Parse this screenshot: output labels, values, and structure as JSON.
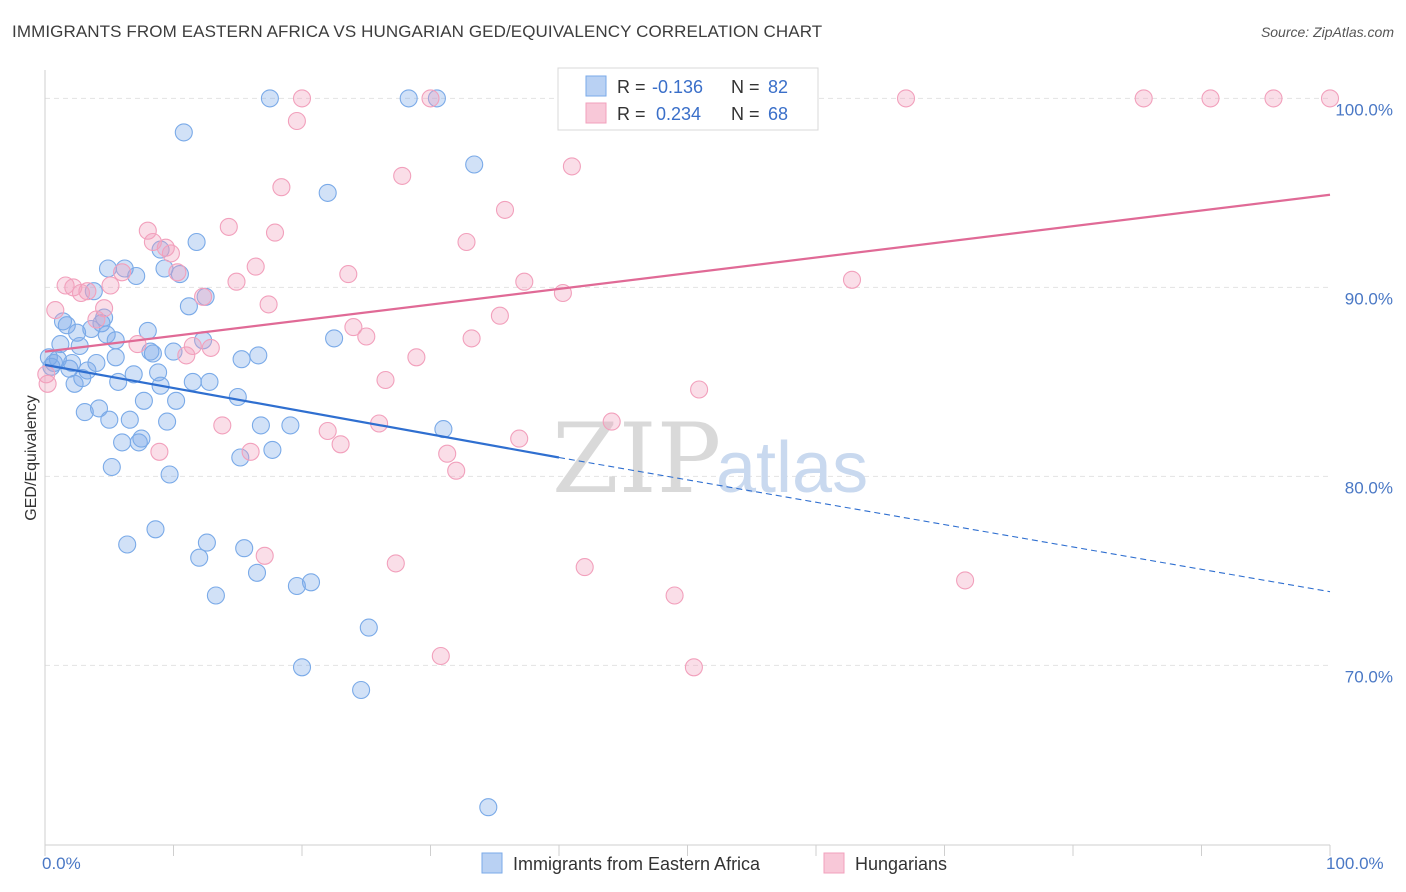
{
  "header": {
    "title": "IMMIGRANTS FROM EASTERN AFRICA VS HUNGARIAN GED/EQUIVALENCY CORRELATION CHART",
    "source": "Source: ZipAtlas.com"
  },
  "watermark": {
    "zip": "ZIP",
    "atlas": "atlas"
  },
  "legend_top": {
    "r_label": "R =",
    "n_label": "N =",
    "rows": [
      {
        "r": "-0.136",
        "n": "82",
        "color": "#7aaae8"
      },
      {
        "r": "0.234",
        "n": "68",
        "color": "#f2a0bc"
      }
    ]
  },
  "chart_data": {
    "type": "scatter",
    "title": "IMMIGRANTS FROM EASTERN AFRICA VS HUNGARIAN GED/EQUIVALENCY CORRELATION CHART",
    "ylabel": "GED/Equivalency",
    "xlim": [
      0,
      100
    ],
    "ylim": [
      60.5,
      101.5
    ],
    "x_tick_labels": [
      "0.0%",
      "100.0%"
    ],
    "y_ticks": [
      {
        "value": 70,
        "label": "70.0%"
      },
      {
        "value": 80,
        "label": "80.0%"
      },
      {
        "value": 90,
        "label": "90.0%"
      },
      {
        "value": 100,
        "label": "100.0%"
      }
    ],
    "grid": true,
    "legend_placement": "bottom",
    "series": [
      {
        "name": "Immigrants from Eastern Africa",
        "color": "#7aaae8",
        "line_color": "#2f6fd0",
        "trend": {
          "x0": 0,
          "y0": 85.9,
          "x1": 40,
          "y1": 81.0,
          "dash_to": 100,
          "dash_y": 73.9
        },
        "points": [
          [
            0.3,
            86.3
          ],
          [
            0.5,
            85.8
          ],
          [
            0.7,
            86.0
          ],
          [
            1.0,
            86.2
          ],
          [
            1.2,
            87.0
          ],
          [
            1.4,
            88.2
          ],
          [
            1.7,
            88.0
          ],
          [
            1.9,
            85.7
          ],
          [
            2.1,
            86.0
          ],
          [
            2.3,
            84.9
          ],
          [
            2.5,
            87.6
          ],
          [
            2.7,
            86.9
          ],
          [
            2.9,
            85.2
          ],
          [
            3.1,
            83.4
          ],
          [
            3.3,
            85.6
          ],
          [
            3.6,
            87.8
          ],
          [
            3.8,
            89.8
          ],
          [
            4.0,
            86.0
          ],
          [
            4.2,
            83.6
          ],
          [
            4.4,
            88.1
          ],
          [
            4.6,
            88.4
          ],
          [
            4.8,
            87.5
          ],
          [
            4.9,
            91.0
          ],
          [
            5.0,
            83.0
          ],
          [
            5.2,
            80.5
          ],
          [
            5.5,
            86.3
          ],
          [
            5.7,
            85.0
          ],
          [
            6.0,
            81.8
          ],
          [
            6.2,
            91.0
          ],
          [
            6.4,
            76.4
          ],
          [
            6.6,
            83.0
          ],
          [
            6.9,
            85.4
          ],
          [
            7.1,
            90.6
          ],
          [
            7.3,
            81.8
          ],
          [
            7.5,
            82.0
          ],
          [
            7.7,
            84.0
          ],
          [
            8.0,
            87.7
          ],
          [
            8.2,
            86.6
          ],
          [
            8.4,
            86.5
          ],
          [
            8.6,
            77.2
          ],
          [
            8.8,
            85.5
          ],
          [
            9.0,
            84.8
          ],
          [
            9.3,
            91.0
          ],
          [
            9.5,
            82.9
          ],
          [
            9.7,
            80.1
          ],
          [
            10.0,
            86.6
          ],
          [
            10.2,
            84.0
          ],
          [
            10.5,
            90.7
          ],
          [
            10.8,
            98.2
          ],
          [
            11.2,
            89.0
          ],
          [
            11.5,
            85.0
          ],
          [
            11.8,
            92.4
          ],
          [
            12.0,
            75.7
          ],
          [
            12.3,
            87.2
          ],
          [
            12.6,
            76.5
          ],
          [
            12.8,
            85.0
          ],
          [
            13.3,
            73.7
          ],
          [
            15.0,
            84.2
          ],
          [
            15.2,
            81.0
          ],
          [
            15.3,
            86.2
          ],
          [
            15.5,
            76.2
          ],
          [
            16.5,
            74.9
          ],
          [
            16.6,
            86.4
          ],
          [
            16.8,
            82.7
          ],
          [
            17.7,
            81.4
          ],
          [
            19.1,
            82.7
          ],
          [
            19.6,
            74.2
          ],
          [
            20.0,
            69.9
          ],
          [
            20.7,
            74.4
          ],
          [
            17.5,
            100
          ],
          [
            22.0,
            95.0
          ],
          [
            28.3,
            100
          ],
          [
            22.5,
            87.3
          ],
          [
            25.2,
            72.0
          ],
          [
            24.6,
            68.7
          ],
          [
            30.5,
            100
          ],
          [
            33.4,
            96.5
          ],
          [
            34.5,
            62.5
          ],
          [
            31.0,
            82.5
          ],
          [
            9.0,
            92.0
          ],
          [
            12.5,
            89.5
          ],
          [
            5.5,
            87.2
          ]
        ]
      },
      {
        "name": "Hungarians",
        "color": "#f2a0bc",
        "line_color": "#e06a96",
        "trend": {
          "x0": 0,
          "y0": 86.6,
          "x1": 100,
          "y1": 94.9
        },
        "points": [
          [
            0.2,
            84.9
          ],
          [
            0.8,
            88.8
          ],
          [
            1.6,
            90.1
          ],
          [
            2.2,
            90.0
          ],
          [
            2.8,
            89.7
          ],
          [
            3.3,
            89.8
          ],
          [
            4.0,
            88.3
          ],
          [
            4.6,
            88.9
          ],
          [
            5.1,
            90.1
          ],
          [
            6.0,
            90.8
          ],
          [
            7.2,
            87.0
          ],
          [
            8.0,
            93.0
          ],
          [
            8.4,
            92.4
          ],
          [
            8.9,
            81.3
          ],
          [
            9.4,
            92.1
          ],
          [
            9.8,
            91.8
          ],
          [
            10.3,
            90.8
          ],
          [
            11.0,
            86.4
          ],
          [
            11.5,
            86.9
          ],
          [
            12.3,
            89.5
          ],
          [
            12.9,
            86.8
          ],
          [
            13.8,
            82.7
          ],
          [
            14.3,
            93.2
          ],
          [
            14.9,
            90.3
          ],
          [
            16.0,
            81.3
          ],
          [
            16.4,
            91.1
          ],
          [
            17.1,
            75.8
          ],
          [
            17.4,
            89.1
          ],
          [
            17.9,
            92.9
          ],
          [
            18.4,
            95.3
          ],
          [
            19.6,
            98.8
          ],
          [
            20.0,
            100
          ],
          [
            22.0,
            82.4
          ],
          [
            23.0,
            81.7
          ],
          [
            23.6,
            90.7
          ],
          [
            24.0,
            87.9
          ],
          [
            25.0,
            87.4
          ],
          [
            26.0,
            82.8
          ],
          [
            26.5,
            85.1
          ],
          [
            27.3,
            75.4
          ],
          [
            27.8,
            95.9
          ],
          [
            28.9,
            86.3
          ],
          [
            30.0,
            100
          ],
          [
            30.8,
            70.5
          ],
          [
            31.3,
            81.2
          ],
          [
            32.0,
            80.3
          ],
          [
            32.8,
            92.4
          ],
          [
            33.2,
            87.3
          ],
          [
            35.4,
            88.5
          ],
          [
            35.8,
            94.1
          ],
          [
            36.9,
            82.0
          ],
          [
            37.3,
            90.3
          ],
          [
            40.3,
            89.7
          ],
          [
            41.0,
            96.4
          ],
          [
            42.0,
            75.2
          ],
          [
            44.1,
            82.9
          ],
          [
            47.0,
            100
          ],
          [
            49.0,
            73.7
          ],
          [
            50.5,
            69.9
          ],
          [
            50.9,
            84.6
          ],
          [
            62.8,
            90.4
          ],
          [
            67.0,
            100
          ],
          [
            71.6,
            74.5
          ],
          [
            85.5,
            100
          ],
          [
            90.7,
            100
          ],
          [
            95.6,
            100
          ],
          [
            100,
            100
          ],
          [
            0.1,
            85.4
          ]
        ]
      }
    ]
  }
}
